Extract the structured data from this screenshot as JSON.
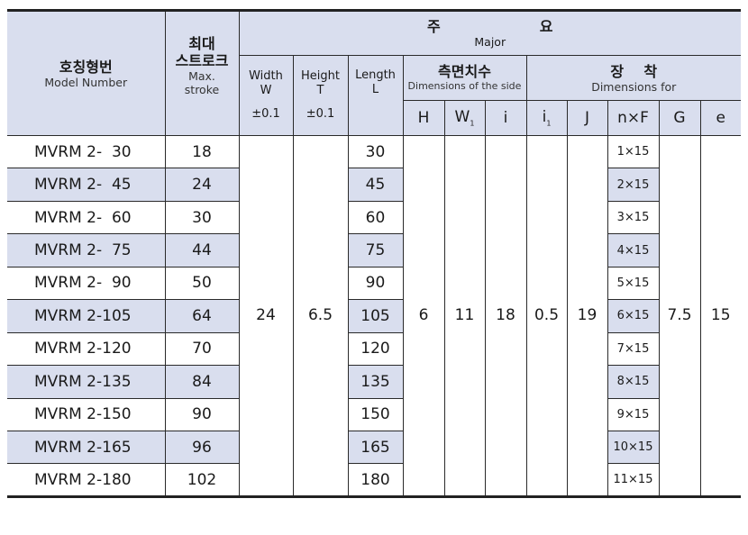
{
  "header": {
    "model": {
      "ko": "호칭형번",
      "en": "Model Number"
    },
    "stroke": {
      "ko": "최대\n스트로크",
      "ko1": "최대",
      "ko2": "스트로크",
      "en1": "Max.",
      "en2": "stroke"
    },
    "major": {
      "ko1": "주",
      "ko2": "요",
      "en": "Major"
    },
    "width": {
      "l1": "Width",
      "l2": "W",
      "tol": "±0.1"
    },
    "height": {
      "l1": "Height",
      "l2": "T",
      "tol": "±0.1"
    },
    "length": {
      "l1": "Length",
      "l2": "L"
    },
    "side": {
      "ko": "측면치수",
      "en": "Dimensions of the side"
    },
    "mount": {
      "ko": "장    착",
      "en": "Dimensions for"
    },
    "cols": {
      "H": "H",
      "W1": "W",
      "W1_sub": "1",
      "i": "i",
      "i1": "i",
      "i1_sub": "1",
      "J": "J",
      "nF": "n×F",
      "G": "G",
      "e": "e"
    }
  },
  "rows": [
    {
      "model": "MVRM 2-  30",
      "stroke": "18",
      "length": "30",
      "nF": "1×15"
    },
    {
      "model": "MVRM 2-  45",
      "stroke": "24",
      "length": "45",
      "nF": "2×15"
    },
    {
      "model": "MVRM 2-  60",
      "stroke": "30",
      "length": "60",
      "nF": "3×15"
    },
    {
      "model": "MVRM 2-  75",
      "stroke": "44",
      "length": "75",
      "nF": "4×15"
    },
    {
      "model": "MVRM 2-  90",
      "stroke": "50",
      "length": "90",
      "nF": "5×15"
    },
    {
      "model": "MVRM 2-105",
      "stroke": "64",
      "length": "105",
      "nF": "6×15"
    },
    {
      "model": "MVRM 2-120",
      "stroke": "70",
      "length": "120",
      "nF": "7×15"
    },
    {
      "model": "MVRM 2-135",
      "stroke": "84",
      "length": "135",
      "nF": "8×15"
    },
    {
      "model": "MVRM 2-150",
      "stroke": "90",
      "length": "150",
      "nF": "9×15"
    },
    {
      "model": "MVRM 2-165",
      "stroke": "96",
      "length": "165",
      "nF": "10×15"
    },
    {
      "model": "MVRM 2-180",
      "stroke": "102",
      "length": "180",
      "nF": "11×15"
    }
  ],
  "common": {
    "W": "24",
    "T": "6.5",
    "H": "6",
    "W1": "11",
    "i": "18",
    "i1": "0.5",
    "J": "19",
    "G": "7.5",
    "e": "15"
  },
  "colors": {
    "header_bg": "#d9deee",
    "shade_bg": "#d9deee",
    "border": "#222222"
  }
}
